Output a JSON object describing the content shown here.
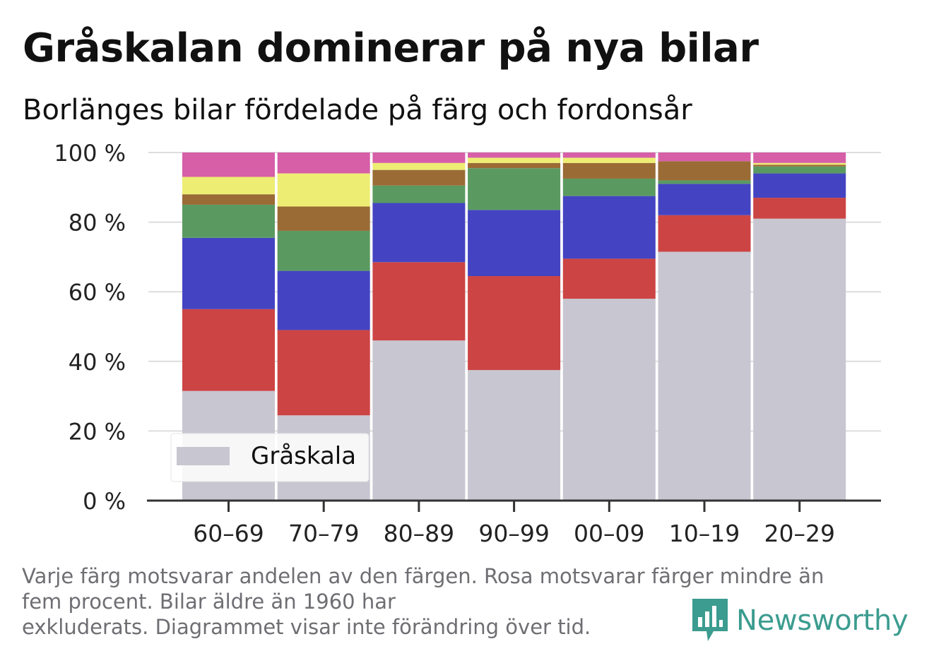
{
  "title": "Gråskalan dominerar på nya bilar",
  "subtitle": "Borlänges bilar fördelade på färg och fordonsår",
  "note_lines": [
    "Varje färg motsvarar andelen av den färgen. Rosa motsvarar färger mindre än",
    "fem procent. Bilar äldre än 1960 har",
    "exkluderats. Diagrammet visar inte förändring över tid."
  ],
  "brand": {
    "name": "Newsworthy",
    "icon": "newsworthy-logo-icon"
  },
  "colors": {
    "Gråskala": "#c8c6d1",
    "Röd": "#cc4444",
    "Blå": "#4444c2",
    "Grön": "#5a9a61",
    "Brun": "#9a6b35",
    "Gul": "#eded73",
    "Rosa": "#d65fa8",
    "grid": "#dddddd",
    "axis": "#333333"
  },
  "chart_data": {
    "type": "bar",
    "stacked": true,
    "categories": [
      "60–69",
      "70–79",
      "80–89",
      "90–99",
      "00–09",
      "10–19",
      "20–29"
    ],
    "series": [
      {
        "name": "Gråskala",
        "values": [
          31.5,
          24.5,
          46.0,
          37.5,
          58.0,
          71.5,
          81.0
        ]
      },
      {
        "values": [
          23.5,
          24.5,
          22.5,
          27.0,
          11.5,
          10.5,
          6.0
        ]
      },
      {
        "values": [
          20.5,
          17.0,
          17.0,
          19.0,
          18.0,
          9.0,
          7.0
        ]
      },
      {
        "values": [
          9.5,
          11.5,
          5.0,
          12.0,
          5.0,
          1.0,
          2.0
        ]
      },
      {
        "values": [
          3.0,
          7.0,
          4.5,
          1.5,
          4.5,
          5.5,
          0.5
        ]
      },
      {
        "values": [
          5.0,
          9.5,
          2.0,
          1.5,
          1.5,
          0.0,
          0.5
        ]
      },
      {
        "values": [
          7.0,
          6.0,
          3.0,
          1.5,
          1.5,
          2.5,
          3.0
        ]
      }
    ],
    "ylim": [
      0,
      100
    ],
    "yticks": [
      "0 %",
      "20 %",
      "40 %",
      "60 %",
      "80 %",
      "100 %"
    ],
    "ytick_values": [
      0,
      20,
      40,
      60,
      80,
      100
    ],
    "grid": true,
    "legend": {
      "placement": "bottom-left",
      "entries": [
        "Gråskala"
      ]
    }
  }
}
